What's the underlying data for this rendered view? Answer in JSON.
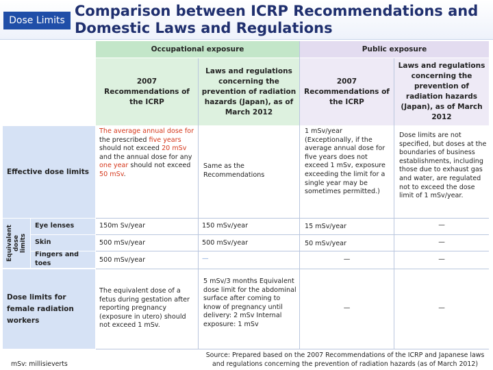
{
  "header": {
    "tag": "Dose Limits",
    "title_line1": "Comparison between ICRP Recommendations and",
    "title_line2": "Domestic Laws and Regulations"
  },
  "columns": {
    "occupational": "Occupational exposure",
    "public": "Public exposure",
    "occ_icrp": "2007 Recommendations of the ICRP",
    "occ_law": "Laws and regulations concerning the prevention of radiation hazards (Japan), as of March 2012",
    "pub_icrp": "2007 Recommendations of the ICRP",
    "pub_law": "Laws and regulations concerning the prevention of radiation hazards (Japan), as of March 2012"
  },
  "rows": {
    "effective": {
      "label": "Effective dose limits",
      "occ_icrp": {
        "p1": "The average annual dose for",
        "p2": "the prescribed ",
        "p3": "five years",
        "p4": "should not exceed ",
        "p5": "20 mSv",
        "p6": "and the annual dose for any",
        "p7": "one year",
        "p8": " should not exceed",
        "p9": "50 mSv",
        "p10": "."
      },
      "occ_law": "Same as the Recommendations",
      "pub_icrp": "1 mSv/year (Exceptionally, if the average annual dose for five years does not exceed 1 mSv, exposure exceeding the limit for a single year may be sometimes permitted.)",
      "pub_law": "Dose limits are not specified, but doses at the boundaries of business establishments, including those due to exhaust gas and water, are regulated not to exceed the dose limit of 1 mSv/year."
    },
    "equivalent_group": "Equivalent dose limits",
    "eye": {
      "label": "Eye lenses",
      "occ_icrp": "150m Sv/year",
      "occ_law": "150 mSv/year",
      "pub_icrp": "15 mSv/year",
      "pub_law": "—"
    },
    "skin": {
      "label": "Skin",
      "occ_icrp": "500 mSv/year",
      "occ_law": "500 mSv/year",
      "pub_icrp": "50 mSv/year",
      "pub_law": "—"
    },
    "fingers": {
      "label": "Fingers and toes",
      "occ_icrp": "500 mSv/year",
      "occ_law": "—",
      "pub_icrp": "—",
      "pub_law": "—"
    },
    "female": {
      "label": "Dose limits for female radiation workers",
      "occ_icrp": "The equivalent dose of a fetus during gestation after reporting pregnancy (exposure in utero) should not exceed 1 mSv.",
      "occ_law": "5 mSv/3 months Equivalent dose limit for the abdominal surface after coming to know of pregnancy until delivery: 2 mSv Internal exposure: 1 mSv",
      "pub_icrp": "—",
      "pub_law": "—"
    }
  },
  "footer": {
    "unit_note": "mSv: millisieverts",
    "source": "Source: Prepared based on the 2007 Recommendations of the ICRP and Japanese laws and regulations concerning the prevention of radiation hazards (as of March 2012)"
  },
  "colors": {
    "accent": "#1f4ea8",
    "occupational": "#c3e6c9",
    "public": "#e3dcf0",
    "row_label": "#d6e2f5",
    "highlight": "#d4361a"
  }
}
